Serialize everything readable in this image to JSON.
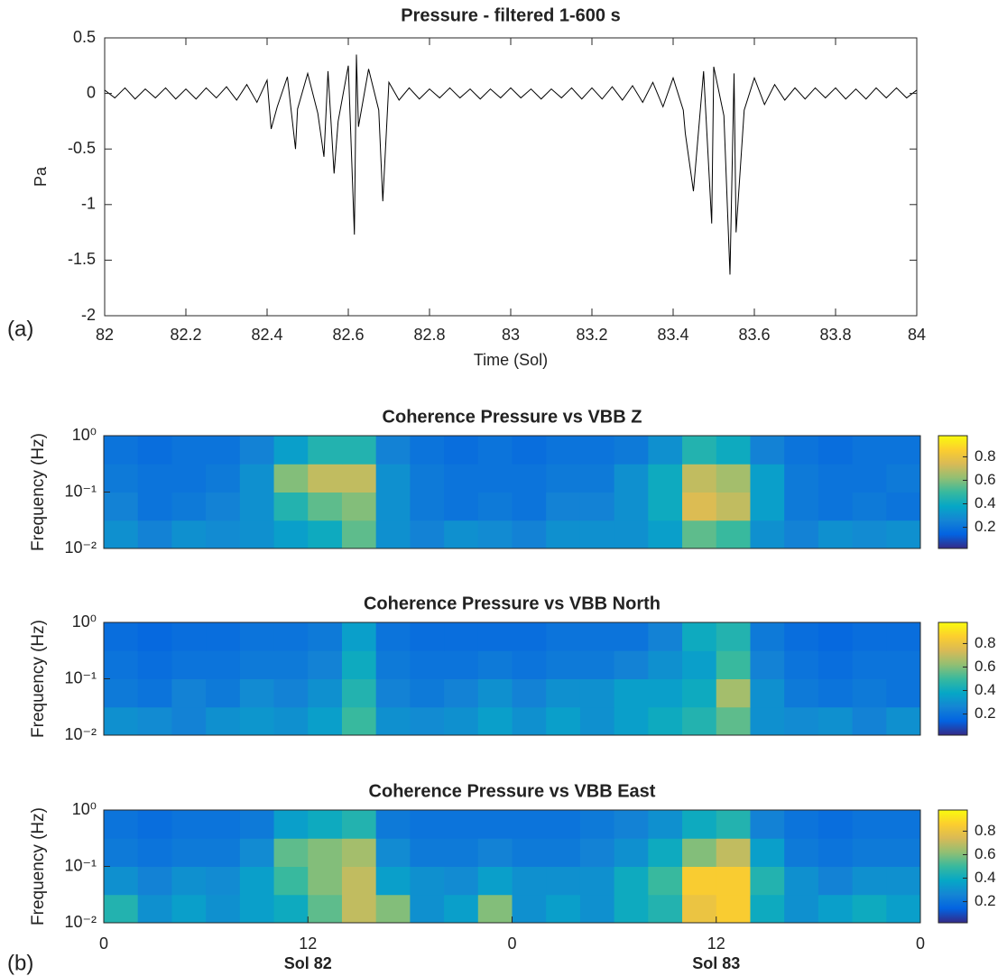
{
  "chart_data": [
    {
      "type": "line",
      "title": "Pressure - filtered 1-600 s",
      "xlabel": "Time (Sol)",
      "ylabel": "Pa",
      "panel_label": "(a)",
      "xlim": [
        82,
        84
      ],
      "xticks": [
        82,
        82.2,
        82.4,
        82.6,
        82.8,
        83,
        83.2,
        83.4,
        83.6,
        83.8,
        84
      ],
      "ylim": [
        -2,
        0.5
      ],
      "yticks": [
        -2,
        -1.5,
        -1,
        -0.5,
        0,
        0.5
      ],
      "x": [
        82,
        82.025,
        82.05,
        82.075,
        82.1,
        82.125,
        82.15,
        82.175,
        82.2,
        82.225,
        82.25,
        82.275,
        82.3,
        82.325,
        82.35,
        82.375,
        82.4,
        82.41,
        82.425,
        82.45,
        82.47,
        82.475,
        82.5,
        82.525,
        82.54,
        82.55,
        82.565,
        82.575,
        82.6,
        82.615,
        82.62,
        82.625,
        82.65,
        82.675,
        82.685,
        82.7,
        82.725,
        82.75,
        82.775,
        82.8,
        82.825,
        82.85,
        82.875,
        82.9,
        82.925,
        82.95,
        82.975,
        83,
        83.025,
        83.05,
        83.075,
        83.1,
        83.125,
        83.15,
        83.175,
        83.2,
        83.225,
        83.25,
        83.275,
        83.3,
        83.325,
        83.35,
        83.375,
        83.4,
        83.425,
        83.43,
        83.45,
        83.475,
        83.495,
        83.5,
        83.525,
        83.54,
        83.55,
        83.555,
        83.575,
        83.6,
        83.625,
        83.65,
        83.675,
        83.7,
        83.725,
        83.75,
        83.775,
        83.8,
        83.825,
        83.85,
        83.875,
        83.9,
        83.925,
        83.95,
        83.975,
        84
      ],
      "series": [
        {
          "color": "#000000",
          "values": [
            0.03,
            -0.04,
            0.05,
            -0.05,
            0.04,
            -0.04,
            0.05,
            -0.05,
            0.04,
            -0.05,
            0.05,
            -0.04,
            0.06,
            -0.06,
            0.08,
            -0.08,
            0.12,
            -0.32,
            -0.12,
            0.15,
            -0.5,
            -0.14,
            0.18,
            -0.18,
            -0.57,
            0.2,
            -0.72,
            -0.25,
            0.25,
            -1.27,
            0.35,
            -0.3,
            0.22,
            -0.15,
            -0.97,
            0.1,
            -0.06,
            0.05,
            -0.05,
            0.04,
            -0.04,
            0.05,
            -0.04,
            0.04,
            -0.05,
            0.04,
            -0.04,
            0.05,
            -0.04,
            0.04,
            -0.05,
            0.04,
            -0.04,
            0.05,
            -0.05,
            0.05,
            -0.05,
            0.06,
            -0.06,
            0.07,
            -0.08,
            0.1,
            -0.12,
            0.14,
            -0.15,
            -0.36,
            -0.88,
            0.2,
            -1.17,
            0.24,
            -0.2,
            -1.63,
            0.18,
            -1.25,
            -0.15,
            0.14,
            -0.1,
            0.08,
            -0.06,
            0.05,
            -0.05,
            0.05,
            -0.04,
            0.05,
            -0.05,
            0.04,
            -0.05,
            0.05,
            -0.04,
            0.05,
            -0.04,
            0.03
          ]
        }
      ]
    },
    {
      "type": "heatmap",
      "title": "Coherence Pressure vs VBB Z",
      "ylabel": "Frequency (Hz)",
      "xlim": [
        0,
        48
      ],
      "ylim": [
        0.01,
        1
      ],
      "log_y": true,
      "yticks": [
        {
          "value": 0.01,
          "label": "10⁻²"
        },
        {
          "value": 0.1,
          "label": "10⁻¹"
        },
        {
          "value": 1,
          "label": "10⁰"
        }
      ],
      "clim": [
        0.02,
        0.98
      ],
      "cticks": [
        0.2,
        0.4,
        0.6,
        0.8
      ],
      "colormap": [
        "#352a87",
        "#0363e1",
        "#1485d4",
        "#06a7c6",
        "#38b99e",
        "#92bf73",
        "#d9ba56",
        "#fcce2e",
        "#f9fb0e"
      ],
      "values": [
        [
          0.3,
          0.25,
          0.3,
          0.28,
          0.3,
          0.35,
          0.4,
          0.55,
          0.3,
          0.25,
          0.3,
          0.28,
          0.25,
          0.3,
          0.3,
          0.3,
          0.35,
          0.55,
          0.5,
          0.3,
          0.25,
          0.3,
          0.28,
          0.3
        ],
        [
          0.25,
          0.2,
          0.22,
          0.25,
          0.3,
          0.45,
          0.55,
          0.6,
          0.3,
          0.22,
          0.2,
          0.22,
          0.2,
          0.25,
          0.25,
          0.3,
          0.4,
          0.75,
          0.7,
          0.35,
          0.22,
          0.2,
          0.22,
          0.2
        ],
        [
          0.22,
          0.2,
          0.2,
          0.22,
          0.3,
          0.6,
          0.7,
          0.7,
          0.3,
          0.22,
          0.2,
          0.2,
          0.2,
          0.22,
          0.22,
          0.3,
          0.4,
          0.7,
          0.65,
          0.35,
          0.22,
          0.2,
          0.2,
          0.22
        ],
        [
          0.2,
          0.18,
          0.2,
          0.2,
          0.25,
          0.35,
          0.45,
          0.45,
          0.25,
          0.2,
          0.18,
          0.2,
          0.18,
          0.2,
          0.2,
          0.22,
          0.3,
          0.45,
          0.4,
          0.25,
          0.2,
          0.18,
          0.2,
          0.2
        ]
      ]
    },
    {
      "type": "heatmap",
      "title": "Coherence Pressure vs VBB North",
      "ylabel": "Frequency (Hz)",
      "xlim": [
        0,
        48
      ],
      "ylim": [
        0.01,
        1
      ],
      "log_y": true,
      "yticks": [
        {
          "value": 0.01,
          "label": "10⁻²"
        },
        {
          "value": 0.1,
          "label": "10⁻¹"
        },
        {
          "value": 1,
          "label": "10⁰"
        }
      ],
      "clim": [
        0.02,
        0.98
      ],
      "cticks": [
        0.2,
        0.4,
        0.6,
        0.8
      ],
      "colormap": [
        "#352a87",
        "#0363e1",
        "#1485d4",
        "#06a7c6",
        "#38b99e",
        "#92bf73",
        "#d9ba56",
        "#fcce2e",
        "#f9fb0e"
      ],
      "values": [
        [
          0.3,
          0.28,
          0.25,
          0.3,
          0.32,
          0.3,
          0.35,
          0.5,
          0.3,
          0.28,
          0.3,
          0.35,
          0.3,
          0.35,
          0.3,
          0.35,
          0.4,
          0.45,
          0.55,
          0.3,
          0.28,
          0.3,
          0.25,
          0.3
        ],
        [
          0.22,
          0.2,
          0.25,
          0.22,
          0.28,
          0.25,
          0.3,
          0.45,
          0.25,
          0.22,
          0.25,
          0.3,
          0.25,
          0.3,
          0.3,
          0.35,
          0.35,
          0.4,
          0.65,
          0.3,
          0.22,
          0.2,
          0.22,
          0.2
        ],
        [
          0.2,
          0.18,
          0.2,
          0.2,
          0.22,
          0.22,
          0.25,
          0.4,
          0.22,
          0.2,
          0.2,
          0.22,
          0.2,
          0.22,
          0.22,
          0.25,
          0.3,
          0.35,
          0.5,
          0.25,
          0.2,
          0.18,
          0.2,
          0.2
        ],
        [
          0.18,
          0.16,
          0.18,
          0.18,
          0.2,
          0.2,
          0.22,
          0.35,
          0.2,
          0.18,
          0.18,
          0.18,
          0.18,
          0.2,
          0.2,
          0.2,
          0.25,
          0.4,
          0.45,
          0.22,
          0.18,
          0.16,
          0.18,
          0.18
        ]
      ]
    },
    {
      "type": "heatmap",
      "title": "Coherence Pressure vs VBB East",
      "ylabel": "Frequency (Hz)",
      "panel_label": "(b)",
      "xlim": [
        0,
        48
      ],
      "xticks": [
        0,
        12,
        {
          "value": 24,
          "label": "0"
        },
        {
          "value": 36,
          "label": "12"
        },
        {
          "value": 48,
          "label": "0"
        }
      ],
      "sol_labels": [
        {
          "value": 12,
          "label": "Sol 82"
        },
        {
          "value": 36,
          "label": "Sol 83"
        }
      ],
      "ylim": [
        0.01,
        1
      ],
      "log_y": true,
      "yticks": [
        {
          "value": 0.01,
          "label": "10⁻²"
        },
        {
          "value": 0.1,
          "label": "10⁻¹"
        },
        {
          "value": 1,
          "label": "10⁰"
        }
      ],
      "clim": [
        0.02,
        0.98
      ],
      "cticks": [
        0.2,
        0.4,
        0.6,
        0.8
      ],
      "colormap": [
        "#352a87",
        "#0363e1",
        "#1485d4",
        "#06a7c6",
        "#38b99e",
        "#92bf73",
        "#d9ba56",
        "#fcce2e",
        "#f9fb0e"
      ],
      "values": [
        [
          0.45,
          0.3,
          0.35,
          0.3,
          0.35,
          0.4,
          0.55,
          0.7,
          0.6,
          0.3,
          0.35,
          0.6,
          0.3,
          0.35,
          0.3,
          0.4,
          0.45,
          0.8,
          0.85,
          0.4,
          0.3,
          0.35,
          0.4,
          0.35
        ],
        [
          0.3,
          0.25,
          0.3,
          0.28,
          0.35,
          0.5,
          0.6,
          0.7,
          0.35,
          0.3,
          0.28,
          0.35,
          0.3,
          0.3,
          0.3,
          0.4,
          0.5,
          0.85,
          0.85,
          0.45,
          0.3,
          0.25,
          0.3,
          0.3
        ],
        [
          0.22,
          0.2,
          0.22,
          0.22,
          0.28,
          0.55,
          0.6,
          0.65,
          0.28,
          0.22,
          0.22,
          0.25,
          0.22,
          0.22,
          0.25,
          0.3,
          0.4,
          0.6,
          0.7,
          0.35,
          0.22,
          0.2,
          0.22,
          0.22
        ],
        [
          0.2,
          0.18,
          0.2,
          0.2,
          0.22,
          0.35,
          0.4,
          0.45,
          0.22,
          0.2,
          0.2,
          0.2,
          0.2,
          0.2,
          0.22,
          0.25,
          0.3,
          0.4,
          0.45,
          0.25,
          0.2,
          0.18,
          0.2,
          0.2
        ]
      ]
    }
  ]
}
